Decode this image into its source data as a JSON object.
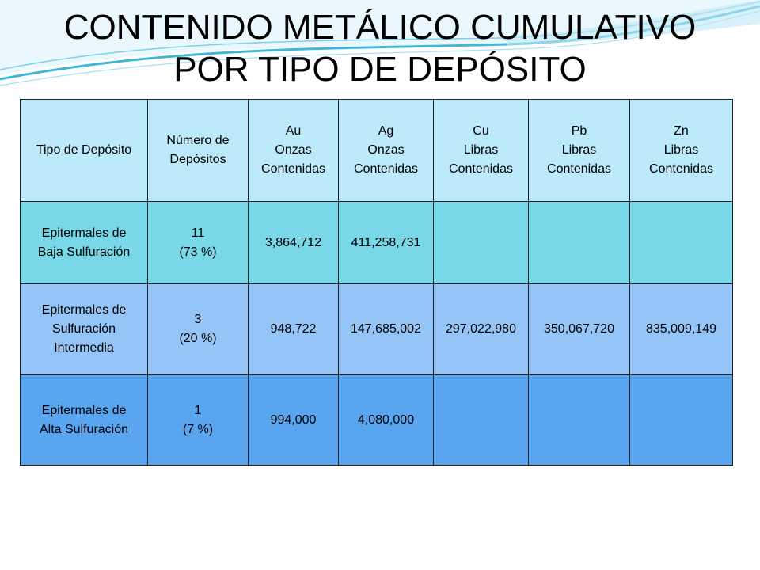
{
  "slide": {
    "title_line1": "CONTENIDO METÁLICO CUMULATIVO",
    "title_line2": "POR TIPO DE DEPÓSITO"
  },
  "table": {
    "headers": [
      [
        "Tipo de Depósito"
      ],
      [
        "Número de",
        "Depósitos"
      ],
      [
        "Au",
        "Onzas",
        "Contenidas"
      ],
      [
        "Ag",
        "Onzas",
        "Contenidas"
      ],
      [
        "Cu",
        "Libras",
        "Contenidas"
      ],
      [
        "Pb",
        "Libras",
        "Contenidas"
      ],
      [
        "Zn",
        "Libras",
        "Contenidas"
      ]
    ],
    "rows": [
      {
        "tipo": [
          "Epitermales de",
          "Baja Sulfuración"
        ],
        "numero": [
          "11",
          "(73 %)"
        ],
        "au": "3,864,712",
        "ag": "411,258,731",
        "cu": "",
        "pb": "",
        "zn": ""
      },
      {
        "tipo": [
          "Epitermales de",
          "Sulfuración",
          "Intermedia"
        ],
        "numero": [
          "3",
          "(20 %)"
        ],
        "au": "948,722",
        "ag": "147,685,002",
        "cu": "297,022,980",
        "pb": "350,067,720",
        "zn": "835,009,149"
      },
      {
        "tipo": [
          "Epitermales de",
          "Alta Sulfuración"
        ],
        "numero": [
          "1",
          "(7 %)"
        ],
        "au": "994,000",
        "ag": "4,080,000",
        "cu": "",
        "pb": "",
        "zn": ""
      }
    ]
  },
  "colors": {
    "header_bg": "#bdeafa",
    "row1_bg": "#79d8e8",
    "row2_bg": "#95c5f7",
    "row3_bg": "#5aa5f0",
    "swoosh": "#3fb8d8"
  }
}
